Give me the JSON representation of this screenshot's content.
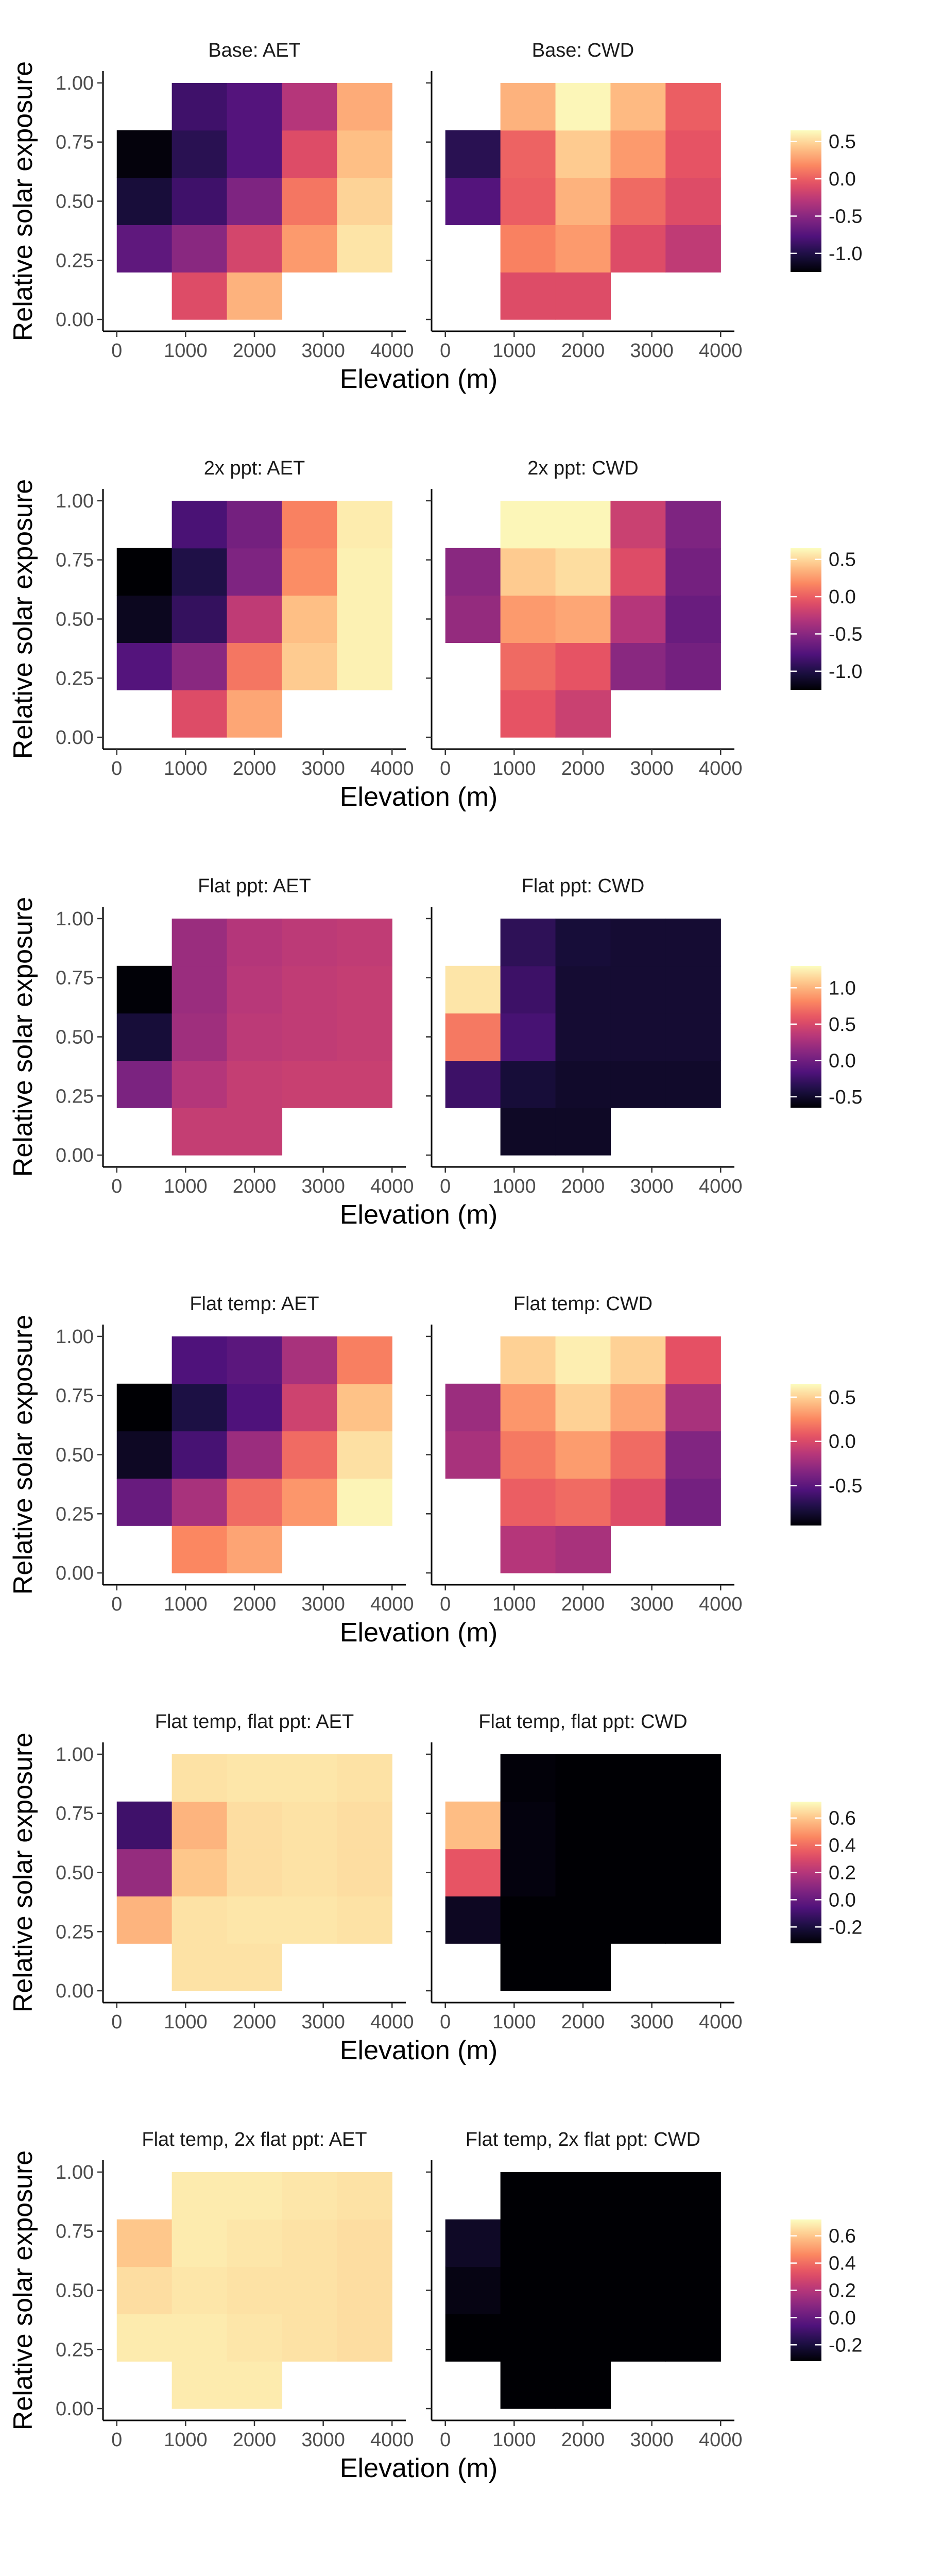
{
  "chart_data": {
    "type": "heatmap",
    "xlabel": "Elevation (m)",
    "ylabel": "Relative solar exposure",
    "x_ticks": [
      0,
      1000,
      2000,
      3000,
      4000
    ],
    "y_ticks": [
      "0.00",
      "0.25",
      "0.50",
      "0.75",
      "1.00"
    ],
    "xlim": [
      -200,
      4200
    ],
    "ylim": [
      -0.05,
      1.05
    ],
    "x_bins": [
      0,
      800,
      1600,
      2400,
      3200,
      4000
    ],
    "y_bins": [
      0.0,
      0.2,
      0.4,
      0.6,
      0.8,
      1.0
    ],
    "grid": false,
    "colormap": [
      "#000004",
      "#1c1044",
      "#4f127b",
      "#812581",
      "#b5367a",
      "#e55064",
      "#fb8761",
      "#fec287",
      "#fcfdbf"
    ],
    "rows": [
      {
        "legend": {
          "vmin": -1.25,
          "vmax": 0.65,
          "ticks": [
            0.5,
            0.0,
            -0.5,
            -1.0
          ],
          "tick_labels": [
            "0.5",
            "0.0",
            "-0.5",
            "-1.0"
          ]
        },
        "panels": [
          {
            "title": "Base: AET",
            "cells": [
              [
                null,
                -0.1,
                0.35,
                null,
                null
              ],
              [
                -0.7,
                -0.5,
                -0.15,
                0.25,
                0.55
              ],
              [
                -1.05,
                -0.85,
                -0.55,
                0.1,
                0.48
              ],
              [
                -1.22,
                -0.95,
                -0.75,
                -0.1,
                0.4
              ],
              [
                null,
                -0.85,
                -0.75,
                -0.3,
                0.32
              ]
            ]
          },
          {
            "title": "Base: CWD",
            "cells": [
              [
                null,
                -0.1,
                -0.1,
                null,
                null
              ],
              [
                null,
                0.15,
                0.25,
                -0.1,
                -0.25
              ],
              [
                -0.75,
                0.0,
                0.35,
                0.05,
                -0.1
              ],
              [
                -0.95,
                0.02,
                0.45,
                0.25,
                -0.05
              ],
              [
                null,
                0.35,
                0.62,
                0.38,
                0.0
              ]
            ]
          }
        ]
      },
      {
        "legend": {
          "vmin": -1.25,
          "vmax": 0.65,
          "ticks": [
            0.5,
            0.0,
            -0.5,
            -1.0
          ],
          "tick_labels": [
            "0.5",
            "0.0",
            "-0.5",
            "-1.0"
          ]
        },
        "panels": [
          {
            "title": "2x ppt: AET",
            "cells": [
              [
                null,
                -0.1,
                0.3,
                null,
                null
              ],
              [
                -0.75,
                -0.5,
                0.1,
                0.45,
                0.6
              ],
              [
                -1.15,
                -0.9,
                -0.25,
                0.4,
                0.6
              ],
              [
                -1.25,
                -1.0,
                -0.55,
                0.2,
                0.6
              ],
              [
                null,
                -0.8,
                -0.6,
                0.15,
                0.58
              ]
            ]
          },
          {
            "title": "2x ppt: CWD",
            "cells": [
              [
                null,
                -0.05,
                -0.2,
                null,
                null
              ],
              [
                null,
                0.05,
                -0.05,
                -0.5,
                -0.6
              ],
              [
                -0.45,
                0.25,
                0.3,
                -0.3,
                -0.65
              ],
              [
                -0.5,
                0.45,
                0.52,
                -0.1,
                -0.6
              ],
              [
                null,
                0.62,
                0.62,
                -0.2,
                -0.55
              ]
            ]
          }
        ]
      },
      {
        "legend": {
          "vmin": -0.65,
          "vmax": 1.3,
          "ticks": [
            1.0,
            0.5,
            0.0,
            -0.5
          ],
          "tick_labels": [
            "1.0",
            "0.5",
            "0.0",
            "-0.5"
          ]
        },
        "panels": [
          {
            "title": "Flat ppt: AET",
            "cells": [
              [
                null,
                0.4,
                0.4,
                null,
                null
              ],
              [
                0.05,
                0.32,
                0.4,
                0.42,
                0.42
              ],
              [
                -0.45,
                0.22,
                0.36,
                0.38,
                0.4
              ],
              [
                -0.64,
                0.2,
                0.34,
                0.38,
                0.4
              ],
              [
                null,
                0.2,
                0.32,
                0.36,
                0.38
              ]
            ]
          },
          {
            "title": "Flat ppt: CWD",
            "cells": [
              [
                null,
                -0.52,
                -0.52,
                null,
                null
              ],
              [
                -0.25,
                -0.45,
                -0.5,
                -0.5,
                -0.5
              ],
              [
                0.75,
                -0.2,
                -0.47,
                -0.47,
                -0.47
              ],
              [
                1.2,
                -0.25,
                -0.47,
                -0.47,
                -0.47
              ],
              [
                null,
                -0.32,
                -0.45,
                -0.47,
                -0.47
              ]
            ]
          }
        ]
      },
      {
        "legend": {
          "vmin": -0.95,
          "vmax": 0.65,
          "ticks": [
            0.5,
            0.0,
            -0.5
          ],
          "tick_labels": [
            "0.5",
            "0.0",
            "-0.5"
          ]
        },
        "panels": [
          {
            "title": "Flat temp: AET",
            "cells": [
              [
                null,
                0.25,
                0.35,
                null,
                null
              ],
              [
                -0.45,
                -0.2,
                0.15,
                0.3,
                0.62
              ],
              [
                -0.85,
                -0.58,
                -0.25,
                0.15,
                0.55
              ],
              [
                -0.95,
                -0.75,
                -0.55,
                -0.05,
                0.45
              ],
              [
                null,
                -0.55,
                -0.5,
                -0.2,
                0.22
              ]
            ]
          },
          {
            "title": "Flat temp: CWD",
            "cells": [
              [
                null,
                -0.15,
                -0.2,
                null,
                null
              ],
              [
                null,
                0.1,
                0.15,
                0.02,
                -0.4
              ],
              [
                -0.2,
                0.2,
                0.32,
                0.15,
                -0.35
              ],
              [
                -0.25,
                0.3,
                0.5,
                0.35,
                -0.2
              ],
              [
                null,
                0.5,
                0.6,
                0.5,
                0.05
              ]
            ]
          }
        ]
      },
      {
        "legend": {
          "vmin": -0.32,
          "vmax": 0.72,
          "ticks": [
            0.6,
            0.4,
            0.2,
            0.0,
            -0.2
          ],
          "tick_labels": [
            "0.6",
            "0.4",
            "0.2",
            "0.0",
            "-0.2"
          ]
        },
        "panels": [
          {
            "title": "Flat temp, flat ppt: AET",
            "cells": [
              [
                null,
                0.66,
                0.66,
                null,
                null
              ],
              [
                0.56,
                0.66,
                0.67,
                0.67,
                0.66
              ],
              [
                0.12,
                0.6,
                0.65,
                0.66,
                0.65
              ],
              [
                -0.1,
                0.56,
                0.65,
                0.66,
                0.65
              ],
              [
                null,
                0.66,
                0.67,
                0.67,
                0.66
              ]
            ]
          },
          {
            "title": "Flat temp, flat ppt: CWD",
            "cells": [
              [
                null,
                -0.32,
                -0.32,
                null,
                null
              ],
              [
                -0.26,
                -0.32,
                -0.32,
                -0.32,
                -0.32
              ],
              [
                0.34,
                -0.3,
                -0.32,
                -0.32,
                -0.32
              ],
              [
                0.58,
                -0.3,
                -0.32,
                -0.32,
                -0.32
              ],
              [
                null,
                -0.31,
                -0.32,
                -0.32,
                -0.32
              ]
            ]
          }
        ]
      },
      {
        "legend": {
          "vmin": -0.32,
          "vmax": 0.72,
          "ticks": [
            0.6,
            0.4,
            0.2,
            0.0,
            -0.2
          ],
          "tick_labels": [
            "0.6",
            "0.4",
            "0.2",
            "0.0",
            "-0.2"
          ]
        },
        "panels": [
          {
            "title": "Flat temp, 2x flat ppt: AET",
            "cells": [
              [
                null,
                0.68,
                0.68,
                null,
                null
              ],
              [
                0.68,
                0.68,
                0.67,
                0.66,
                0.65
              ],
              [
                0.65,
                0.67,
                0.66,
                0.66,
                0.65
              ],
              [
                0.6,
                0.68,
                0.67,
                0.66,
                0.65
              ],
              [
                null,
                0.68,
                0.68,
                0.67,
                0.66
              ]
            ]
          },
          {
            "title": "Flat temp, 2x flat ppt: CWD",
            "cells": [
              [
                null,
                -0.32,
                -0.32,
                null,
                null
              ],
              [
                -0.32,
                -0.32,
                -0.32,
                -0.32,
                -0.32
              ],
              [
                -0.29,
                -0.32,
                -0.32,
                -0.32,
                -0.32
              ],
              [
                -0.25,
                -0.32,
                -0.32,
                -0.32,
                -0.32
              ],
              [
                null,
                -0.32,
                -0.32,
                -0.32,
                -0.32
              ]
            ]
          }
        ]
      }
    ]
  }
}
